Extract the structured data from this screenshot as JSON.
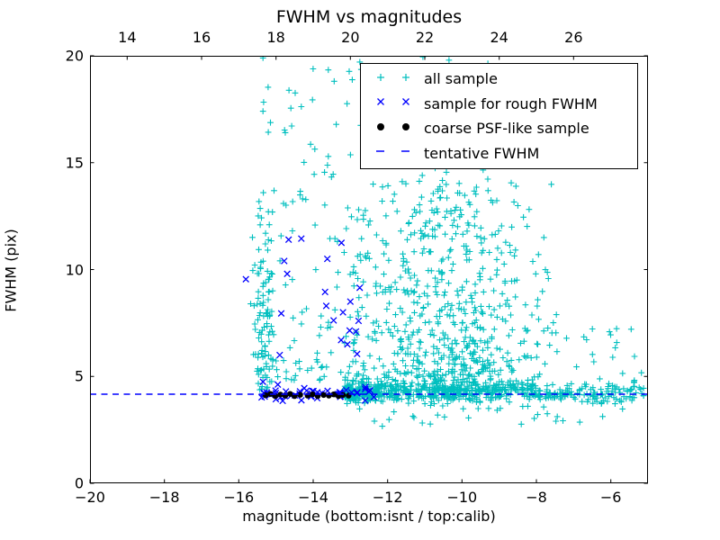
{
  "chart_data": {
    "type": "scatter",
    "title": "FWHM vs magnitudes",
    "xlabel": "magnitude (bottom:isnt / top:calib)",
    "ylabel": "FWHM (pix)",
    "xlim": [
      -20,
      -5
    ],
    "ylim": [
      0,
      20
    ],
    "grid": false,
    "xticks": [
      -20,
      -18,
      -16,
      -14,
      -12,
      -10,
      -8,
      -6
    ],
    "xtick_labels": [
      "−20",
      "−18",
      "−16",
      "−14",
      "−12",
      "−10",
      "−8",
      "−6"
    ],
    "yticks": [
      0,
      5,
      10,
      15,
      20
    ],
    "ytick_labels": [
      "0",
      "5",
      "10",
      "15",
      "20"
    ],
    "top_axis": {
      "lim": [
        13,
        28
      ],
      "ticks": [
        14,
        16,
        18,
        20,
        22,
        24,
        26
      ],
      "tick_labels": [
        "14",
        "16",
        "18",
        "20",
        "22",
        "24",
        "26"
      ]
    },
    "tentative_fwhm": 4.17,
    "colors": {
      "all_sample": "#00bfbf",
      "rough_fwhm": "#0000ff",
      "psf_like": "#000000",
      "tentative_line": "#0000ff",
      "frame": "#000000"
    },
    "legend": {
      "position": "upper right",
      "entries": [
        {
          "label": "all sample",
          "marker": "plus",
          "color": "#00bfbf"
        },
        {
          "label": "sample for rough FWHM",
          "marker": "x",
          "color": "#0000ff"
        },
        {
          "label": "coarse PSF-like sample",
          "marker": "dot",
          "color": "#000000"
        },
        {
          "label": "tentative FWHM",
          "marker": "dash",
          "color": "#0000ff"
        }
      ]
    },
    "seed": 1337,
    "series": [
      {
        "name": "all sample",
        "marker": "plus",
        "color": "#00bfbf",
        "points": [
          [
            -7.8,
            11.5
          ],
          [
            -8.7,
            10.8
          ],
          [
            -8.55,
            13.9
          ],
          [
            -15.35,
            19.9
          ],
          [
            -11.05,
            19.95
          ],
          [
            -10.35,
            19.8
          ]
        ],
        "clusters": [
          {
            "count": 90,
            "x": {
              "type": "normal",
              "mean": -15.32,
              "sd": 0.17,
              "min": -15.75,
              "max": -14.95
            },
            "y": {
              "type": "power",
              "min": 4.35,
              "max": 13.8,
              "exp": 1.4
            }
          },
          {
            "count": 12,
            "x": {
              "type": "normal",
              "mean": -15.28,
              "sd": 0.07,
              "min": -15.5,
              "max": -15.05
            },
            "y": {
              "type": "normal",
              "mean": 7.7,
              "sd": 0.28,
              "min": 7.0,
              "max": 8.4
            }
          },
          {
            "count": 85,
            "x": {
              "type": "uniform",
              "min": -15.45,
              "max": -12.7
            },
            "y": {
              "type": "power",
              "min": 4.8,
              "max": 13.8,
              "exp": 1.35
            }
          },
          {
            "count": 26,
            "x": {
              "type": "uniform",
              "min": -15.55,
              "max": -13.3
            },
            "y": {
              "type": "uniform",
              "min": 14.0,
              "max": 19.8
            }
          },
          {
            "count": 40,
            "x": {
              "type": "uniform",
              "min": -13.1,
              "max": -9.2
            },
            "y": {
              "type": "uniform",
              "min": 13.5,
              "max": 19.9
            }
          },
          {
            "count": 640,
            "x": {
              "type": "normal",
              "mean": -10.15,
              "sd": 1.1,
              "min": -13.0,
              "max": -7.3
            },
            "y": {
              "type": "power",
              "min": 4.35,
              "max": 14.2,
              "exp": 2.1
            }
          },
          {
            "count": 110,
            "x": {
              "type": "uniform",
              "min": -13.05,
              "max": -11.1
            },
            "y": {
              "type": "power",
              "min": 4.6,
              "max": 13.2,
              "exp": 1.5
            }
          },
          {
            "count": 580,
            "x": {
              "type": "power",
              "min": -13.15,
              "max": -5.05,
              "exp": 1.55
            },
            "y": {
              "type": "normal",
              "mean": 4.2,
              "sd": 0.22,
              "min": 3.55,
              "max": 4.95
            }
          },
          {
            "count": 30,
            "x": {
              "type": "uniform",
              "min": -13.0,
              "max": -5.4
            },
            "y": {
              "type": "uniform",
              "min": 2.65,
              "max": 3.75
            }
          },
          {
            "count": 25,
            "x": {
              "type": "uniform",
              "min": -8.1,
              "max": -5.15
            },
            "y": {
              "type": "power",
              "min": 4.55,
              "max": 7.4,
              "exp": 1.6
            }
          }
        ]
      },
      {
        "name": "sample for rough FWHM",
        "marker": "x",
        "color": "#0000ff",
        "points": [
          [
            -14.66,
            11.4
          ],
          [
            -14.32,
            11.45
          ],
          [
            -13.24,
            11.25
          ],
          [
            -14.78,
            10.4
          ],
          [
            -13.62,
            10.5
          ],
          [
            -15.81,
            9.55
          ],
          [
            -14.7,
            9.8
          ],
          [
            -12.75,
            9.15
          ],
          [
            -13.68,
            8.95
          ],
          [
            -14.86,
            7.95
          ],
          [
            -13.65,
            8.3
          ],
          [
            -13.2,
            8.0
          ],
          [
            -13.0,
            8.5
          ],
          [
            -12.78,
            7.6
          ],
          [
            -13.45,
            7.62
          ],
          [
            -13.02,
            7.15
          ],
          [
            -12.85,
            7.1
          ],
          [
            -13.25,
            6.7
          ],
          [
            -13.08,
            6.5
          ],
          [
            -14.9,
            6.0
          ],
          [
            -12.82,
            6.05
          ],
          [
            -15.35,
            4.75
          ],
          [
            -14.95,
            4.62
          ],
          [
            -12.6,
            4.5
          ]
        ],
        "clusters": [
          {
            "count": 48,
            "x": {
              "type": "power",
              "min": -15.45,
              "max": -12.28,
              "exp": 0.85
            },
            "y": {
              "type": "normal",
              "mean": 4.15,
              "sd": 0.15,
              "min": 3.8,
              "max": 4.6
            }
          }
        ]
      },
      {
        "name": "coarse PSF-like sample",
        "marker": "dot",
        "color": "#000000",
        "points": [
          [
            -15.28,
            4.12
          ],
          [
            -15.15,
            4.18
          ],
          [
            -15.02,
            4.08
          ],
          [
            -14.88,
            4.15
          ],
          [
            -14.75,
            4.1
          ],
          [
            -14.62,
            4.18
          ],
          [
            -14.5,
            4.08
          ],
          [
            -14.35,
            4.14
          ],
          [
            -14.15,
            4.1
          ],
          [
            -14.02,
            4.16
          ],
          [
            -13.88,
            4.08
          ],
          [
            -13.72,
            4.13
          ],
          [
            -13.58,
            4.1
          ],
          [
            -13.45,
            4.16
          ],
          [
            -13.32,
            4.08
          ],
          [
            -13.2,
            4.13
          ],
          [
            -13.05,
            4.1
          ]
        ],
        "clusters": []
      },
      {
        "name": "tentative FWHM",
        "marker": "dash-line",
        "color": "#0000ff",
        "y_value": 4.17
      }
    ]
  }
}
